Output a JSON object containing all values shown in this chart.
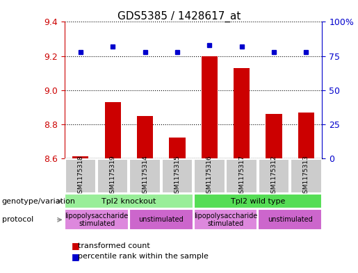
{
  "title": "GDS5385 / 1428617_at",
  "samples": [
    "GSM1175318",
    "GSM1175319",
    "GSM1175314",
    "GSM1175315",
    "GSM1175316",
    "GSM1175317",
    "GSM1175312",
    "GSM1175313"
  ],
  "bar_values": [
    8.61,
    8.93,
    8.85,
    8.72,
    9.2,
    9.13,
    8.86,
    8.87
  ],
  "dot_values": [
    78,
    82,
    78,
    78,
    83,
    82,
    78,
    78
  ],
  "ylim": [
    8.6,
    9.4
  ],
  "y2lim": [
    0,
    100
  ],
  "yticks": [
    8.6,
    8.8,
    9.0,
    9.2,
    9.4
  ],
  "y2ticks": [
    0,
    25,
    50,
    75,
    100
  ],
  "bar_color": "#cc0000",
  "dot_color": "#0000cc",
  "bar_base": 8.6,
  "genotype_groups": [
    {
      "label": "Tpl2 knockout",
      "start": 0,
      "end": 4,
      "color": "#99ee99"
    },
    {
      "label": "Tpl2 wild type",
      "start": 4,
      "end": 8,
      "color": "#55dd55"
    }
  ],
  "protocol_groups": [
    {
      "label": "lipopolysaccharide\nstimulated",
      "start": 0,
      "end": 2,
      "color": "#dd88dd"
    },
    {
      "label": "unstimulated",
      "start": 2,
      "end": 4,
      "color": "#cc66cc"
    },
    {
      "label": "lipopolysaccharide\nstimulated",
      "start": 4,
      "end": 6,
      "color": "#dd88dd"
    },
    {
      "label": "unstimulated",
      "start": 6,
      "end": 8,
      "color": "#cc66cc"
    }
  ],
  "arrow_color": "#888888",
  "grid_color": "#000000",
  "tick_color_left": "#cc0000",
  "tick_color_right": "#0000cc",
  "sample_box_color": "#cccccc",
  "figsize": [
    5.15,
    3.93
  ],
  "dpi": 100
}
